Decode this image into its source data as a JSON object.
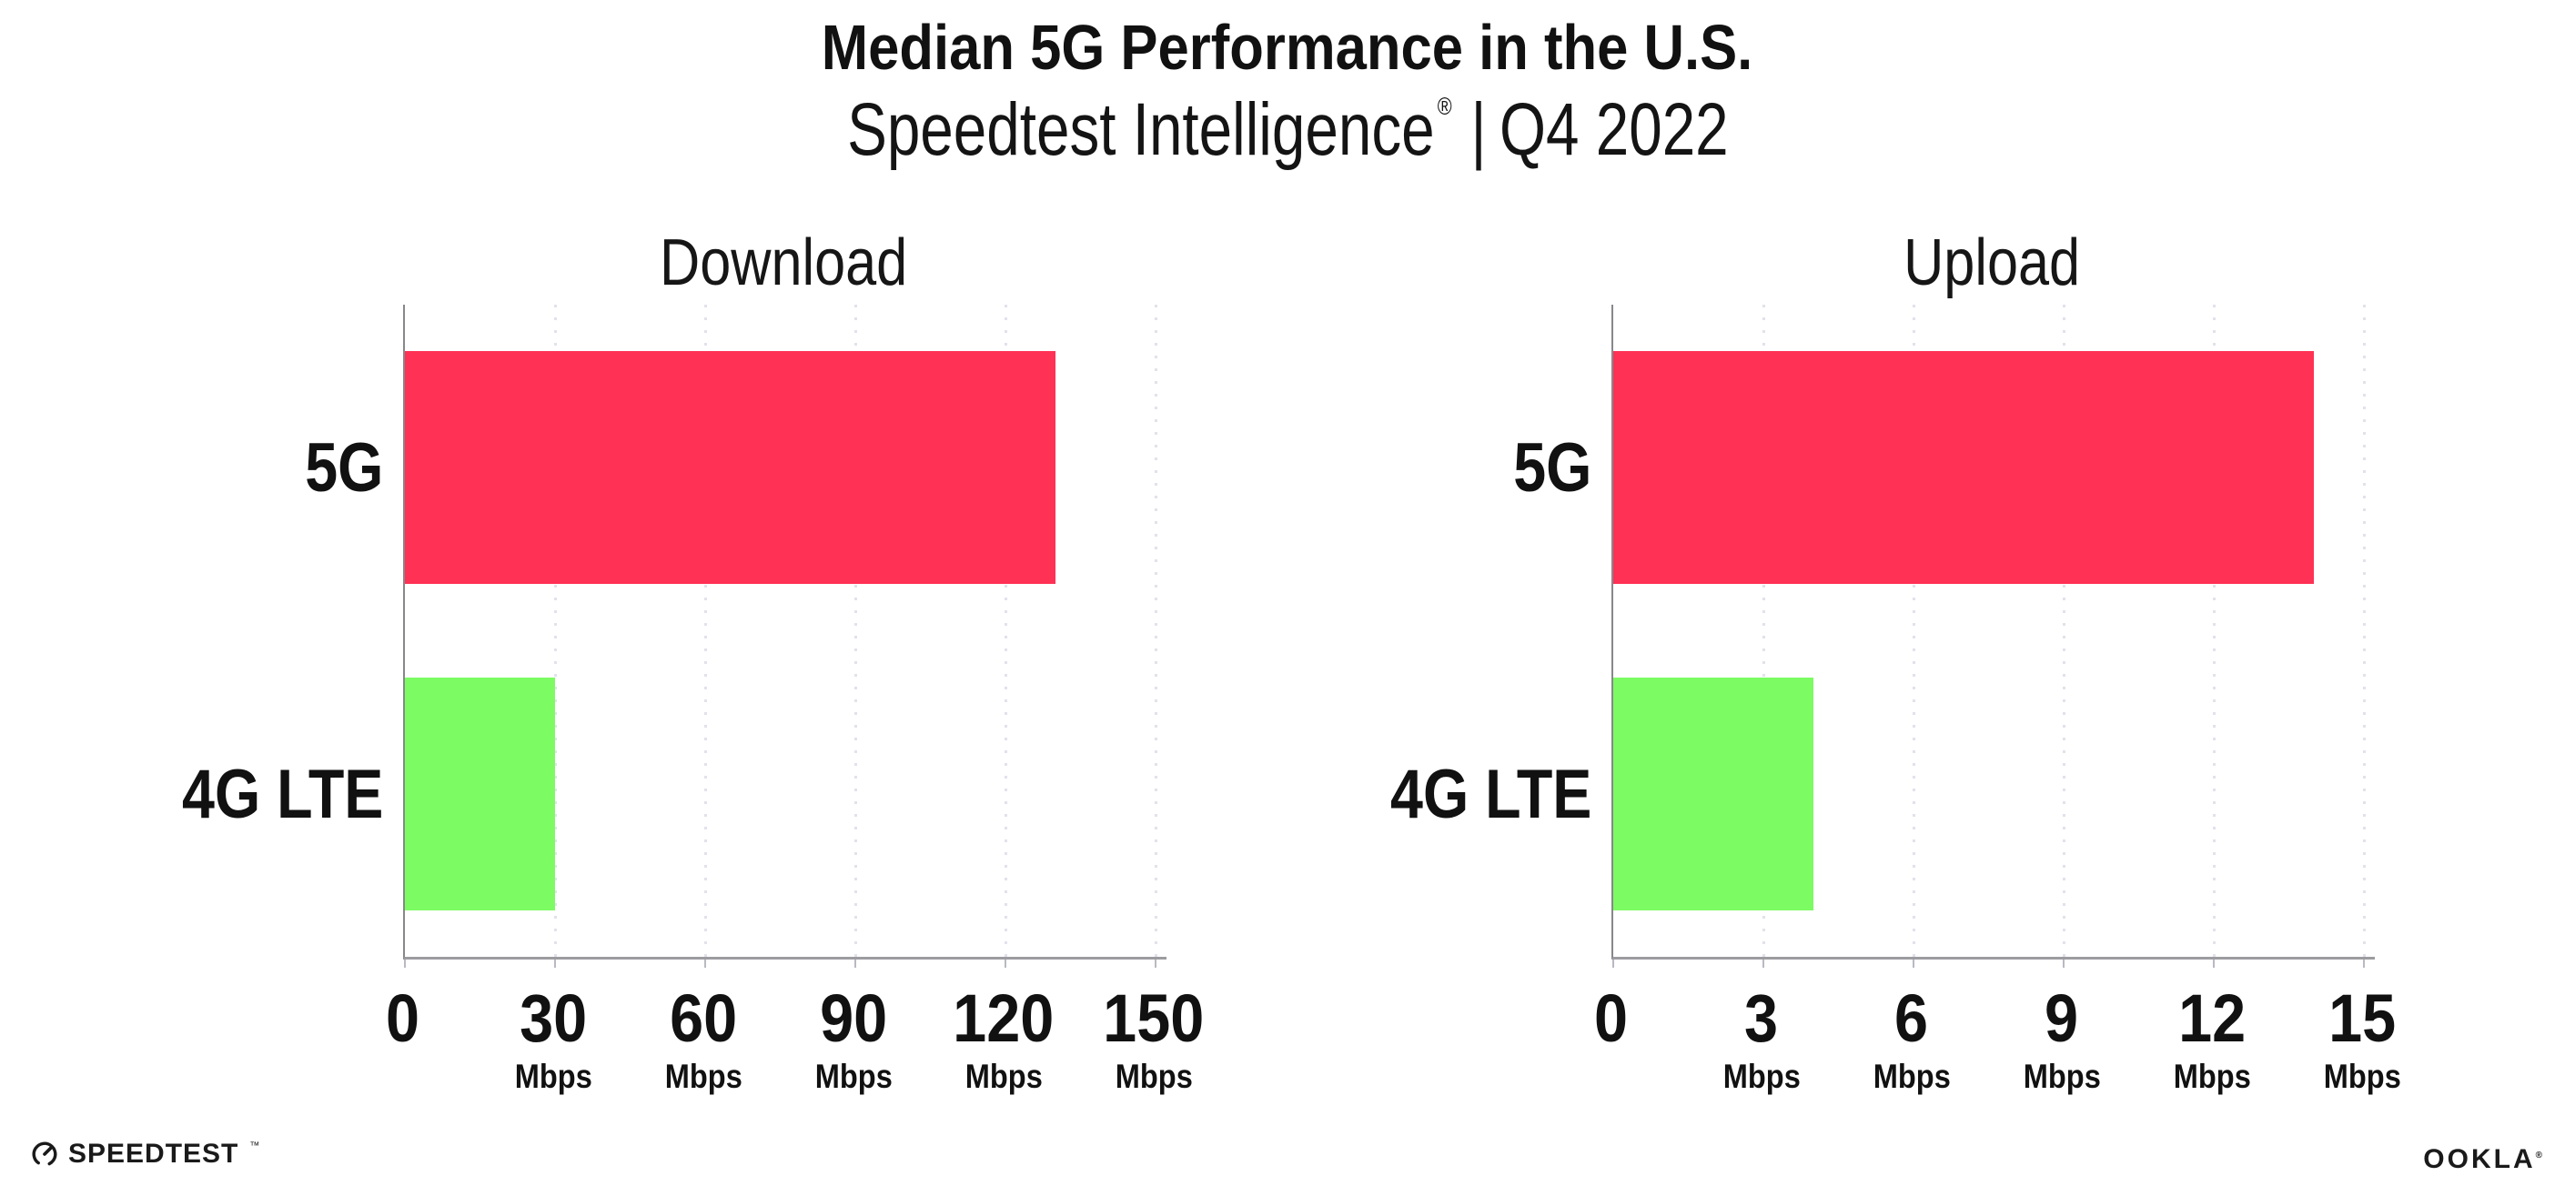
{
  "header": {
    "title": "Median 5G Performance in the U.S.",
    "subtitle": {
      "brand": "Speedtest Intelligence",
      "registered_mark": "®",
      "separator": "|",
      "period": "Q4 2022"
    }
  },
  "footer": {
    "speedtest_logo_text": "SPEEDTEST",
    "speedtest_trademark": "™",
    "ookla_logo_text": "OOKLA",
    "ookla_registered_mark": "®"
  },
  "colors": {
    "bar_5g": "#FF3155",
    "bar_4g_lte": "#7CFB62",
    "axis": "#9c9ca1",
    "gridline": "#E1E2EC",
    "text": "#111111",
    "background": "#ffffff"
  },
  "chart_data": [
    {
      "type": "bar",
      "orientation": "horizontal",
      "title": "Download",
      "categories": [
        "5G",
        "4G LTE"
      ],
      "values": [
        130,
        30
      ],
      "unit": "Mbps",
      "xlim": [
        0,
        150
      ],
      "xticks": [
        0,
        30,
        60,
        90,
        120,
        150
      ],
      "tick_unit_label": "Mbps",
      "grid": "dotted-vertical",
      "legend": "none",
      "bar_colors": [
        "#FF3155",
        "#7CFB62"
      ]
    },
    {
      "type": "bar",
      "orientation": "horizontal",
      "title": "Upload",
      "categories": [
        "5G",
        "4G LTE"
      ],
      "values": [
        14,
        4
      ],
      "unit": "Mbps",
      "xlim": [
        0,
        15
      ],
      "xticks": [
        0,
        3,
        6,
        9,
        12,
        15
      ],
      "tick_unit_label": "Mbps",
      "grid": "dotted-vertical",
      "legend": "none",
      "bar_colors": [
        "#FF3155",
        "#7CFB62"
      ]
    }
  ]
}
